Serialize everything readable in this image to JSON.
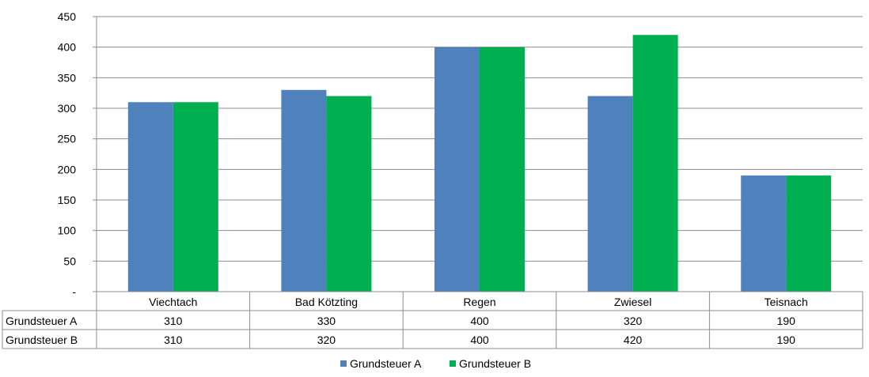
{
  "chart_data": {
    "type": "bar",
    "categories": [
      "Viechtach",
      "Bad Kötzting",
      "Regen",
      "Zwiesel",
      "Teisnach"
    ],
    "series": [
      {
        "name": "Grundsteuer A",
        "values": [
          310,
          330,
          400,
          320,
          190
        ],
        "color": "#4F81BD"
      },
      {
        "name": "Grundsteuer B",
        "values": [
          310,
          320,
          400,
          420,
          190
        ],
        "color": "#00B050"
      }
    ],
    "ylim": [
      0,
      450
    ],
    "yticks": [
      0,
      50,
      100,
      150,
      200,
      250,
      300,
      350,
      400,
      450
    ],
    "ytick_labels": [
      "-",
      "50",
      "100",
      "150",
      "200",
      "250",
      "300",
      "350",
      "400",
      "450"
    ],
    "grid": true,
    "data_table": true,
    "legend_position": "bottom"
  }
}
